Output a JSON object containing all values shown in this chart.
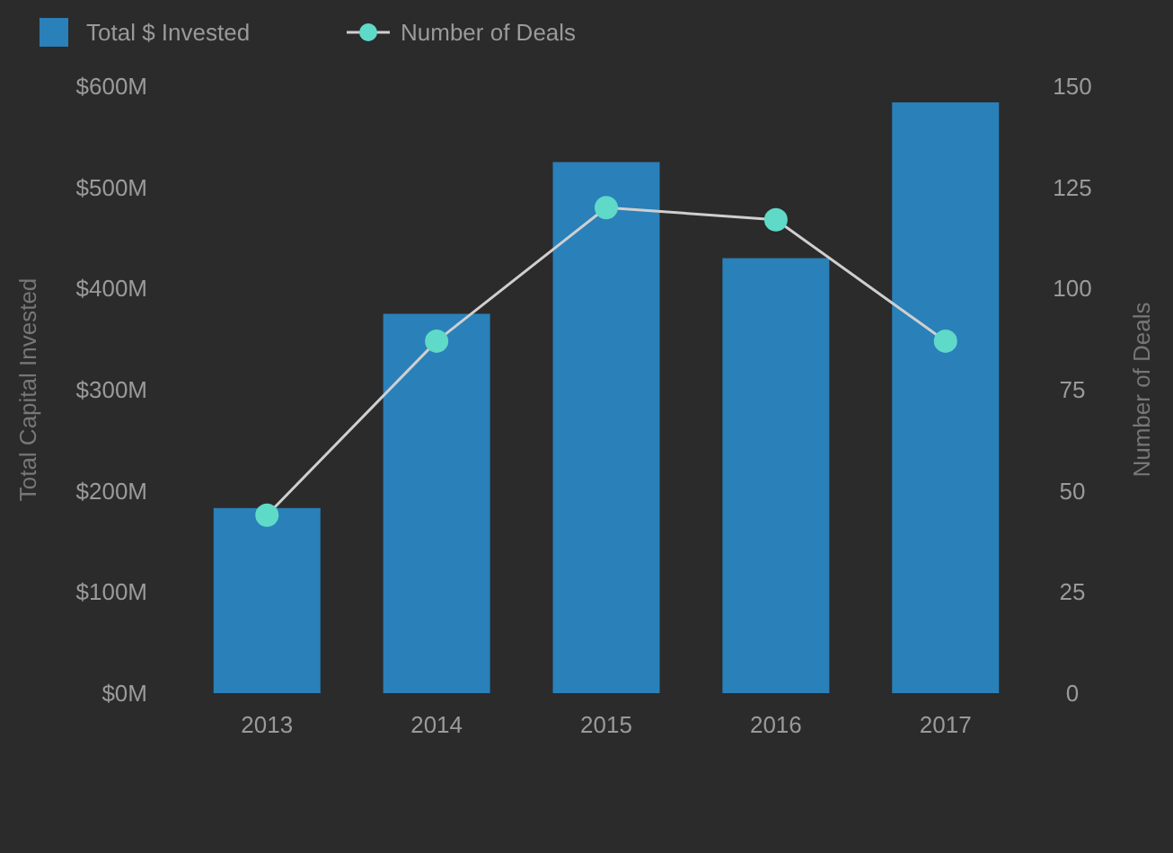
{
  "chart_data": {
    "type": "bar",
    "categories": [
      "2013",
      "2014",
      "2015",
      "2016",
      "2017"
    ],
    "series": [
      {
        "name": "Total $ Invested",
        "color": "#2a80b9",
        "values": [
          183,
          375,
          525,
          430,
          584
        ]
      },
      {
        "name": "Number of Deals",
        "type": "line",
        "axis": "y2",
        "color": "#5fd9c8",
        "values": [
          44,
          87,
          120,
          117,
          87
        ]
      }
    ],
    "ylabel": "Total Capital Invested",
    "y2label": "Number of Deals",
    "ylim": [
      0,
      600
    ],
    "yticks": [
      {
        "value": 0,
        "label": "$0M"
      },
      {
        "value": 100,
        "label": "$100M"
      },
      {
        "value": 200,
        "label": "$200M"
      },
      {
        "value": 300,
        "label": "$300M"
      },
      {
        "value": 400,
        "label": "$400M"
      },
      {
        "value": 500,
        "label": "$500M"
      },
      {
        "value": 600,
        "label": "$600M"
      }
    ],
    "y2lim": [
      0,
      150
    ],
    "y2ticks": [
      0,
      25,
      50,
      75,
      100,
      125,
      150
    ],
    "legend": "top left",
    "marker": "circle",
    "grid": false
  }
}
